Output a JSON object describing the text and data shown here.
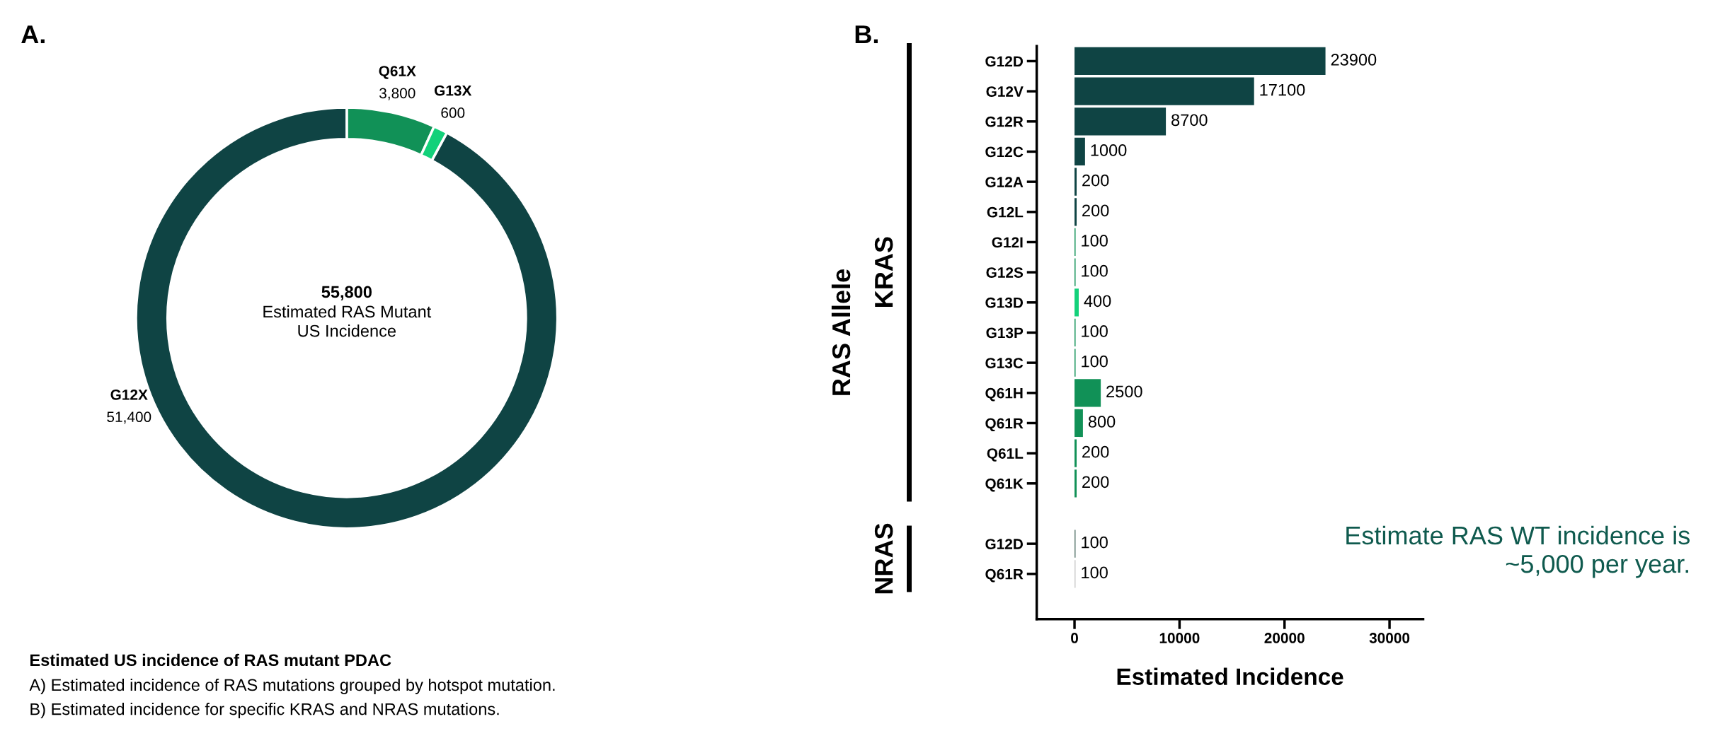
{
  "chart_data": [
    {
      "type": "donut",
      "title": "A.",
      "categories": [
        "Q61X",
        "G13X",
        "G12X"
      ],
      "values": [
        3800,
        600,
        51400
      ],
      "colors": [
        "#119157",
        "#13d17a",
        "#0f4444"
      ],
      "value_labels": [
        "3,800",
        "600",
        "51,400"
      ],
      "annotations": [
        "55,800",
        "Estimated RAS Mutant\nUS Incidence",
        "Estimated US incidence of RAS mutant PDAC",
        "A) Estimated incidence of RAS mutations grouped by hotspot mutation.",
        "B) Estimated incidence for specific KRAS and NRAS mutations."
      ]
    },
    {
      "type": "bar",
      "orientation": "horizontal",
      "title": "B.",
      "ylabel": "RAS Allele",
      "xlabel": "Estimated Incidence",
      "categories": [
        "G12D",
        "G12V",
        "G12R",
        "G12C",
        "G12A",
        "G12L",
        "G12I",
        "G12S",
        "G13D",
        "G13P",
        "G13C",
        "Q61H",
        "Q61R",
        "Q61L",
        "Q61K",
        null,
        "G12D",
        "Q61R"
      ],
      "values": [
        23900,
        17100,
        8700,
        1000,
        200,
        200,
        100,
        100,
        400,
        100,
        100,
        2500,
        800,
        200,
        200,
        null,
        100,
        100
      ],
      "colors": [
        "#0f4444",
        "#0f4444",
        "#0f4444",
        "#0f4444",
        "#0f4444",
        "#0f4444",
        "#119157",
        "#119157",
        "#13d17a",
        "#119157",
        "#119157",
        "#119157",
        "#119157",
        "#119157",
        "#119157",
        null,
        "#5e7a72",
        "#cccccc"
      ],
      "data_labels": true,
      "xlim": [
        -3600,
        33200
      ],
      "xticks": [
        0,
        10000,
        20000,
        30000
      ],
      "grid": false,
      "annotations": [
        "KRAS",
        "NRAS",
        "Estimate RAS WT incidence is\n~5,000 per year."
      ]
    }
  ]
}
